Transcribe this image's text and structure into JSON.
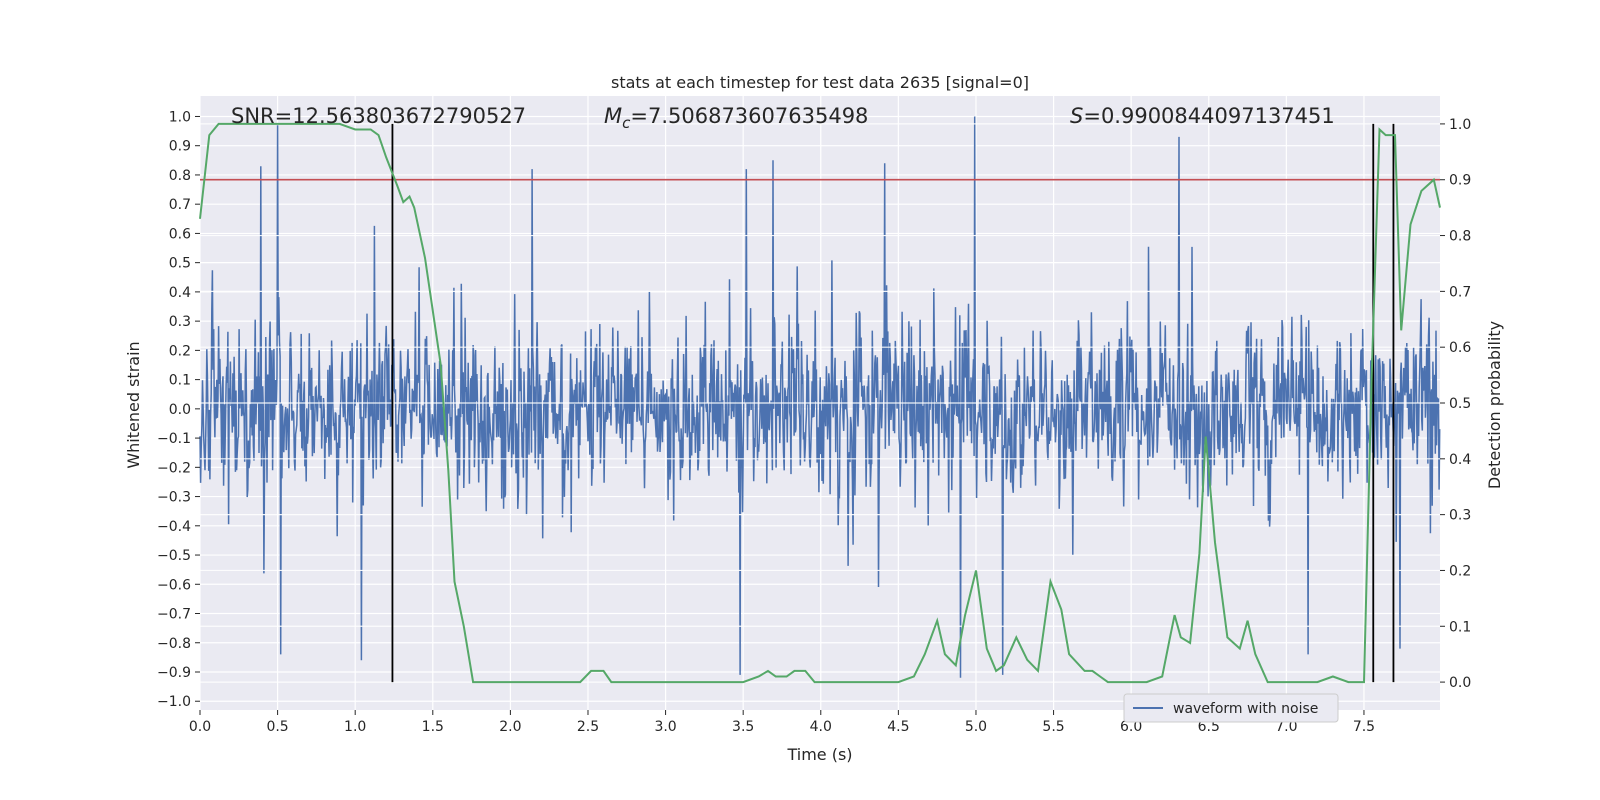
{
  "chart_data": {
    "type": "line",
    "title": "stats at each timestep for test data 2635 [signal=0]",
    "xlabel": "Time (s)",
    "ylabel": "Whitened strain",
    "ylabel_right": "Detection probability",
    "xlim": [
      0.0,
      7.99
    ],
    "ylim": [
      -1.03,
      1.07
    ],
    "ylim_right": [
      -0.05,
      1.05
    ],
    "x_ticks": [
      0.0,
      0.5,
      1.0,
      1.5,
      2.0,
      2.5,
      3.0,
      3.5,
      4.0,
      4.5,
      5.0,
      5.5,
      6.0,
      6.5,
      7.0,
      7.5
    ],
    "x_tick_labels": [
      "0.0",
      "0.5",
      "1.0",
      "1.5",
      "2.0",
      "2.5",
      "3.0",
      "3.5",
      "4.0",
      "4.5",
      "5.0",
      "5.5",
      "6.0",
      "6.5",
      "7.0",
      "7.5"
    ],
    "y_ticks": [
      -1.0,
      -0.9,
      -0.8,
      -0.7,
      -0.6,
      -0.5,
      -0.4,
      -0.3,
      -0.2,
      -0.1,
      0.0,
      0.1,
      0.2,
      0.3,
      0.4,
      0.5,
      0.6,
      0.7,
      0.8,
      0.9,
      1.0
    ],
    "y_tick_labels": [
      "−1.0",
      "−0.9",
      "−0.8",
      "−0.7",
      "−0.6",
      "−0.5",
      "−0.4",
      "−0.3",
      "−0.2",
      "−0.1",
      "0.0",
      "0.1",
      "0.2",
      "0.3",
      "0.4",
      "0.5",
      "0.6",
      "0.7",
      "0.8",
      "0.9",
      "1.0"
    ],
    "y_right_ticks": [
      0.0,
      0.1,
      0.2,
      0.3,
      0.4,
      0.5,
      0.6,
      0.7,
      0.8,
      0.9,
      1.0
    ],
    "y_right_tick_labels": [
      "0.0",
      "0.1",
      "0.2",
      "0.3",
      "0.4",
      "0.5",
      "0.6",
      "0.7",
      "0.8",
      "0.9",
      "1.0"
    ],
    "grid": true,
    "annotations": {
      "snr": "SNR=12.563803672790527",
      "mc_symbol": "M",
      "mc_sub": "c",
      "mc_value": "=7.506873607635498",
      "s_symbol": "S",
      "s_value": "=0.9900844097137451"
    },
    "legend": {
      "entries": [
        "waveform with noise"
      ],
      "placement": "lower-right"
    },
    "threshold_right": 0.9,
    "vertical_markers": [
      1.24,
      7.56,
      7.69
    ],
    "waveform": {
      "name": "waveform with noise",
      "color": "#4c72b0",
      "dt": 0.004,
      "amplitude_envelope": 0.55,
      "notable_peaks": [
        {
          "x": 0.5,
          "y": 0.97
        },
        {
          "x": 0.39,
          "y": 0.83
        },
        {
          "x": 4.99,
          "y": 1.0
        },
        {
          "x": 6.31,
          "y": 0.93
        },
        {
          "x": 3.69,
          "y": 0.85
        },
        {
          "x": 4.41,
          "y": 0.84
        },
        {
          "x": 3.52,
          "y": 0.82
        },
        {
          "x": 2.14,
          "y": 0.82
        },
        {
          "x": 0.52,
          "y": -0.84
        },
        {
          "x": 3.48,
          "y": -0.91
        },
        {
          "x": 4.9,
          "y": -0.92
        },
        {
          "x": 5.17,
          "y": -0.91
        },
        {
          "x": 7.14,
          "y": -0.84
        },
        {
          "x": 1.04,
          "y": -0.86
        },
        {
          "x": 7.73,
          "y": -0.82
        }
      ]
    },
    "probability": {
      "name": "detection probability",
      "color": "#55a868",
      "x": [
        0.0,
        0.06,
        0.12,
        0.2,
        0.3,
        0.5,
        0.7,
        0.9,
        1.0,
        1.1,
        1.15,
        1.2,
        1.27,
        1.31,
        1.35,
        1.38,
        1.45,
        1.55,
        1.6,
        1.64,
        1.7,
        1.76,
        1.85,
        2.0,
        2.2,
        2.4,
        2.45,
        2.52,
        2.6,
        2.65,
        2.8,
        3.0,
        3.3,
        3.5,
        3.6,
        3.66,
        3.71,
        3.78,
        3.83,
        3.9,
        3.96,
        4.02,
        4.1,
        4.3,
        4.5,
        4.6,
        4.67,
        4.75,
        4.8,
        4.87,
        4.93,
        5.0,
        5.07,
        5.13,
        5.18,
        5.26,
        5.33,
        5.4,
        5.48,
        5.55,
        5.6,
        5.7,
        5.75,
        5.8,
        5.85,
        5.9,
        6.0,
        6.1,
        6.2,
        6.25,
        6.28,
        6.32,
        6.38,
        6.44,
        6.48,
        6.54,
        6.62,
        6.7,
        6.75,
        6.8,
        6.88,
        6.95,
        7.05,
        7.2,
        7.3,
        7.4,
        7.5,
        7.55,
        7.6,
        7.64,
        7.7,
        7.74,
        7.8,
        7.87,
        7.95,
        7.99
      ],
      "y": [
        0.83,
        0.98,
        1.0,
        1.0,
        1.0,
        1.0,
        1.0,
        1.0,
        0.99,
        0.99,
        0.98,
        0.94,
        0.89,
        0.86,
        0.87,
        0.85,
        0.76,
        0.57,
        0.38,
        0.18,
        0.1,
        0.0,
        0.0,
        0.0,
        0.0,
        0.0,
        0.0,
        0.02,
        0.02,
        0.0,
        0.0,
        0.0,
        0.0,
        0.0,
        0.01,
        0.02,
        0.01,
        0.01,
        0.02,
        0.02,
        0.0,
        0.0,
        0.0,
        0.0,
        0.0,
        0.01,
        0.05,
        0.11,
        0.05,
        0.03,
        0.12,
        0.2,
        0.06,
        0.02,
        0.03,
        0.08,
        0.04,
        0.02,
        0.18,
        0.13,
        0.05,
        0.02,
        0.02,
        0.01,
        0.0,
        0.0,
        0.0,
        0.0,
        0.01,
        0.08,
        0.12,
        0.08,
        0.07,
        0.23,
        0.44,
        0.25,
        0.08,
        0.06,
        0.11,
        0.05,
        0.0,
        0.0,
        0.0,
        0.0,
        0.01,
        0.0,
        0.0,
        0.55,
        0.99,
        0.98,
        0.98,
        0.63,
        0.82,
        0.88,
        0.9,
        0.85
      ]
    },
    "colors": {
      "plot_bg": "#eaeaf2",
      "grid": "#ffffff",
      "threshold": "#c44e52",
      "marker": "#000000"
    }
  }
}
